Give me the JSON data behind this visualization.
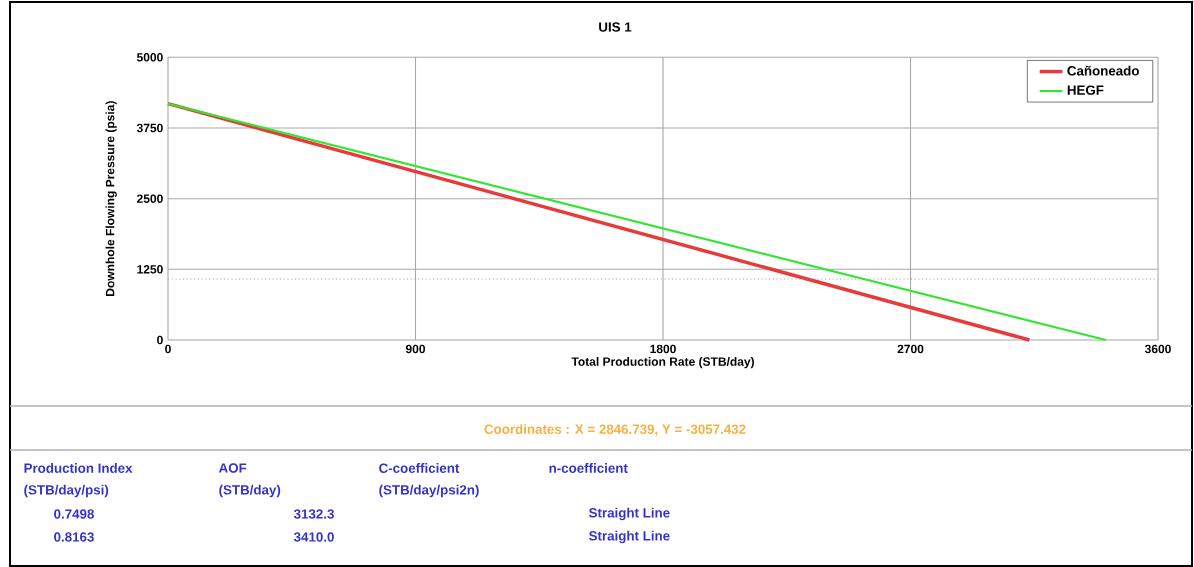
{
  "chart_data": {
    "type": "line",
    "title": "UIS 1",
    "xlabel": "Total Production Rate (STB/day)",
    "ylabel": "Downhole Flowing Pressure (psia)",
    "series": [
      {
        "name": "Cañoneado",
        "color": "#e83a3a",
        "x": [
          0,
          3132.3
        ],
        "values": [
          4180,
          0
        ]
      },
      {
        "name": "HEGF",
        "color": "#33e633",
        "x": [
          0,
          3410.0
        ],
        "values": [
          4180,
          0
        ]
      }
    ],
    "xlim": [
      0,
      3600
    ],
    "ylim": [
      0,
      5000
    ],
    "xticks": [
      0,
      900,
      1800,
      2700,
      3600
    ],
    "yticks": [
      0,
      1250,
      2500,
      3750,
      5000
    ],
    "grid": true,
    "legend": "top right",
    "marker": "none",
    "line_style": "solid",
    "ref_lines": [
      {
        "axis": "y",
        "value": 1080,
        "color": "#a0a0a0",
        "line_style": "dotted"
      }
    ],
    "annotations": [
      "Coordinates :  X = 2846.739,  Y = -3057.432",
      "Production Index",
      "AOF",
      "C-coefficient",
      "n-coefficient",
      "(STB/day/psi)",
      "(STB/day)",
      "(STB/day/psi2n)",
      "0.7498",
      "3132.3",
      "Straight Line",
      "0.8163",
      "3410.0",
      "Straight Line"
    ]
  }
}
